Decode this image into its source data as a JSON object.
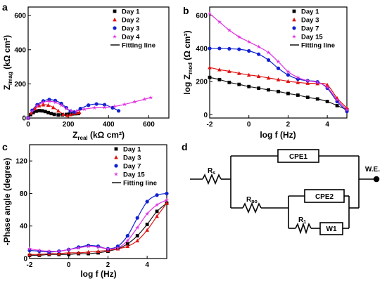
{
  "colors": {
    "black": "#000000",
    "red": "#e01010",
    "blue": "#1020d0",
    "magenta": "#e030e0",
    "fit": "#1a1a1a"
  },
  "chart_data": [
    {
      "panel": "a",
      "type": "scatter",
      "xlabel_main": "Z",
      "xlabel_sub": "real",
      "xlabel_unit": " (kΩ cm²)",
      "ylabel_main": "Z",
      "ylabel_sub": "imag",
      "ylabel_unit": " (kΩ cm²)",
      "xlim": [
        0,
        700
      ],
      "ylim": [
        0,
        650
      ],
      "xticks": [
        0,
        200,
        400,
        600
      ],
      "yticks": [
        0,
        200,
        400,
        600
      ],
      "legend_position": "top-right",
      "fit_label": "Fitting line",
      "series": [
        {
          "name": "Day 1",
          "color": "black",
          "marker": "square",
          "x": [
            0,
            12,
            25,
            40,
            55,
            70,
            85,
            100,
            115,
            130,
            150,
            170,
            190,
            205,
            220,
            235,
            250
          ],
          "y": [
            0,
            20,
            32,
            40,
            43,
            42,
            38,
            32,
            26,
            21,
            18,
            19,
            21,
            23,
            24,
            25,
            26
          ]
        },
        {
          "name": "Day 2",
          "color": "red",
          "marker": "triangle",
          "x": [
            0,
            15,
            35,
            55,
            75,
            100,
            125,
            150,
            175,
            195,
            210,
            225,
            240,
            255
          ],
          "y": [
            0,
            30,
            55,
            72,
            78,
            75,
            62,
            42,
            22,
            15,
            20,
            28,
            30,
            33
          ]
        },
        {
          "name": "Day 3",
          "color": "blue",
          "marker": "circle",
          "x": [
            0,
            20,
            45,
            75,
            105,
            135,
            165,
            190,
            210,
            230,
            260,
            300,
            340,
            380,
            420,
            450
          ],
          "y": [
            0,
            45,
            78,
            100,
            108,
            102,
            85,
            60,
            40,
            35,
            55,
            75,
            82,
            78,
            60,
            42
          ]
        },
        {
          "name": "Day 4",
          "color": "magenta",
          "marker": "star",
          "x": [
            0,
            20,
            45,
            75,
            105,
            135,
            165,
            190,
            215,
            240,
            280,
            330,
            380,
            430,
            480,
            530,
            580,
            610
          ],
          "y": [
            0,
            40,
            72,
            92,
            98,
            92,
            75,
            55,
            42,
            40,
            52,
            60,
            62,
            68,
            80,
            95,
            110,
            120
          ]
        }
      ]
    },
    {
      "panel": "b",
      "type": "line",
      "xlabel": "log f (Hz)",
      "ylabel_main": "log Z",
      "ylabel_sub": "mod",
      "ylabel_unit": " (Ω cm²)",
      "xlim": [
        -2,
        5
      ],
      "ylim": [
        -20,
        650
      ],
      "xticks": [
        -2,
        0,
        2,
        4
      ],
      "yticks": [
        0,
        200,
        400,
        600
      ],
      "legend_position": "top-right",
      "fit_label": "Fitting line",
      "series": [
        {
          "name": "Day 1",
          "color": "black",
          "marker": "square",
          "x": [
            -2,
            -1.5,
            -1,
            -0.5,
            0,
            0.5,
            1,
            1.5,
            2,
            2.5,
            3,
            3.5,
            4,
            4.5,
            5
          ],
          "y": [
            225,
            212,
            195,
            183,
            170,
            160,
            150,
            140,
            128,
            118,
            105,
            95,
            80,
            55,
            30
          ]
        },
        {
          "name": "Day 3",
          "color": "red",
          "marker": "triangle",
          "x": [
            -2,
            -1.5,
            -1,
            -0.5,
            0,
            0.5,
            1,
            1.5,
            2,
            2.5,
            3,
            3.5,
            4,
            4.5,
            5
          ],
          "y": [
            285,
            272,
            262,
            250,
            240,
            232,
            222,
            212,
            202,
            195,
            190,
            188,
            180,
            100,
            40
          ]
        },
        {
          "name": "Day 7",
          "color": "blue",
          "marker": "circle",
          "x": [
            -2,
            -1.5,
            -1,
            -0.5,
            0,
            0.5,
            1,
            1.5,
            2,
            2.5,
            3,
            3.5,
            4,
            4.5,
            5
          ],
          "y": [
            400,
            400,
            398,
            395,
            385,
            365,
            330,
            280,
            240,
            215,
            205,
            198,
            160,
            80,
            20
          ]
        },
        {
          "name": "Day 15",
          "color": "magenta",
          "marker": "star",
          "x": [
            -2,
            -1.5,
            -1,
            -0.5,
            0,
            0.5,
            1,
            1.5,
            2,
            2.5,
            3,
            3.5,
            4,
            4.5,
            5
          ],
          "y": [
            610,
            560,
            510,
            470,
            440,
            410,
            375,
            320,
            260,
            225,
            205,
            195,
            165,
            90,
            30
          ]
        }
      ]
    },
    {
      "panel": "c",
      "type": "line",
      "xlabel": "log f (Hz)",
      "ylabel": "-Phase angle (degree)",
      "xlim": [
        -2,
        5
      ],
      "ylim": [
        0,
        140
      ],
      "xticks": [
        -2,
        0,
        2,
        4
      ],
      "yticks": [
        0,
        40,
        80,
        120
      ],
      "legend_position": "top-right",
      "fit_label": "Fitting line",
      "series": [
        {
          "name": "Day 1",
          "color": "black",
          "marker": "square",
          "x": [
            -2,
            -1.5,
            -1,
            -0.5,
            0,
            0.5,
            1,
            1.5,
            2,
            2.5,
            3,
            3.5,
            4,
            4.5,
            5
          ],
          "y": [
            4,
            4,
            5,
            5,
            5,
            6,
            6,
            7,
            9,
            12,
            18,
            28,
            42,
            58,
            68
          ]
        },
        {
          "name": "Day 3",
          "color": "red",
          "marker": "triangle",
          "x": [
            -2,
            -1.5,
            -1,
            -0.5,
            0,
            0.5,
            1,
            1.5,
            2,
            2.5,
            3,
            3.5,
            4,
            4.5,
            5
          ],
          "y": [
            5,
            5,
            6,
            6,
            7,
            7,
            8,
            9,
            10,
            12,
            15,
            22,
            35,
            52,
            68
          ]
        },
        {
          "name": "Day 7",
          "color": "blue",
          "marker": "circle",
          "x": [
            -2,
            -1.5,
            -1,
            -0.5,
            0,
            0.5,
            1,
            1.5,
            2,
            2.5,
            3,
            3.5,
            4,
            4.5,
            5
          ],
          "y": [
            10,
            9,
            8,
            9,
            11,
            14,
            16,
            15,
            12,
            15,
            28,
            50,
            70,
            78,
            80
          ]
        },
        {
          "name": "Day 15",
          "color": "magenta",
          "marker": "star",
          "x": [
            -2,
            -1.5,
            -1,
            -0.5,
            0,
            0.5,
            1,
            1.5,
            2,
            2.5,
            3,
            3.5,
            4,
            4.5,
            5
          ],
          "y": [
            12,
            10,
            9,
            9,
            11,
            13,
            15,
            14,
            12,
            13,
            22,
            38,
            55,
            66,
            72
          ]
        }
      ]
    }
  ],
  "circuit": {
    "panel": "d",
    "rs_main": "R",
    "rs_sub": "s",
    "cpe1": "CPE1",
    "rpo_main": "R",
    "rpo_sub": "po",
    "cpe2": "CPE2",
    "r1_main": "R",
    "r1_sub": "1",
    "w1": "W1",
    "we": "W.E."
  }
}
